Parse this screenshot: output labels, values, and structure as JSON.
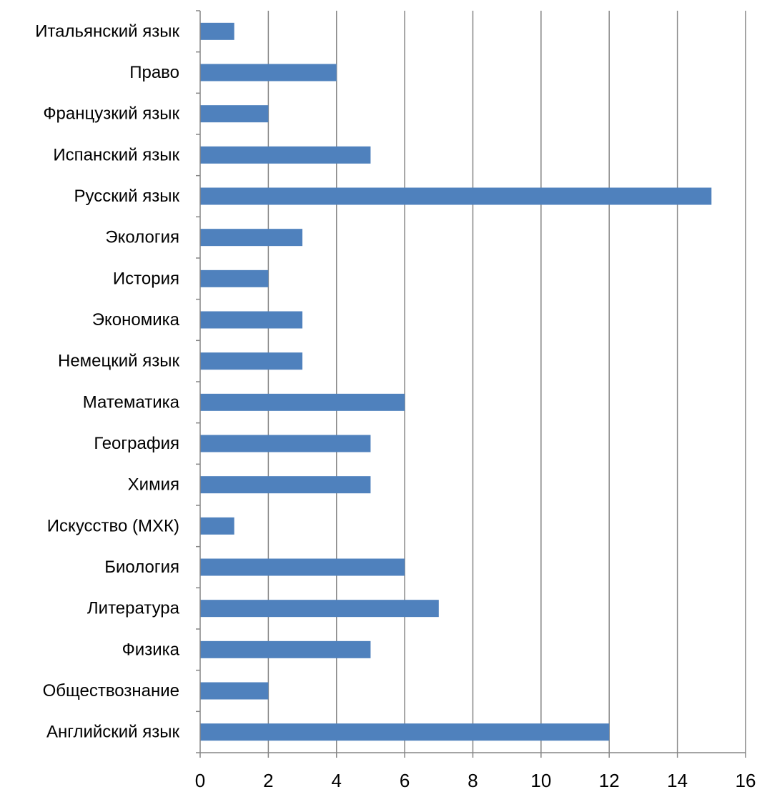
{
  "chart_data": {
    "type": "bar",
    "orientation": "horizontal",
    "title": "",
    "xlabel": "",
    "ylabel": "",
    "categories": [
      "Английский язык",
      "Обществознание",
      "Физика",
      "Литература",
      "Биология",
      "Искусство (МХК)",
      "Химия",
      "География",
      "Математика",
      "Немецкий язык",
      "Экономика",
      "История",
      "Экология",
      "Русский язык",
      "Испанский язык",
      "Французкий язык",
      "Право",
      "Итальянский язык"
    ],
    "values": [
      12,
      2,
      5,
      7,
      6,
      1,
      5,
      5,
      6,
      3,
      3,
      2,
      3,
      15,
      5,
      2,
      4,
      1
    ],
    "xlim": [
      0,
      16
    ],
    "xticks": [
      0,
      2,
      4,
      6,
      8,
      10,
      12,
      14,
      16
    ],
    "xtick_labels": [
      "0",
      "2",
      "4",
      "6",
      "8",
      "10",
      "12",
      "14",
      "16"
    ],
    "grid": "vertical",
    "legend": "none",
    "colors": {
      "bar": "#4f81bd",
      "grid": "#868686",
      "text": "#000000"
    }
  }
}
